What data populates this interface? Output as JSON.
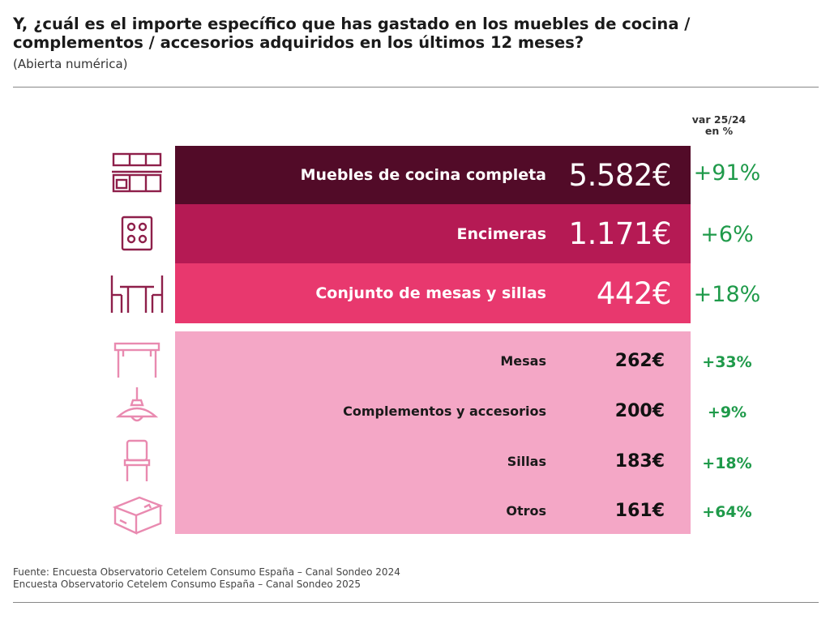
{
  "title": "Y, ¿cuál es el importe específico que has gastado en los muebles de cocina / complementos / accesorios adquiridos en los últimos 12 meses?",
  "subtitle": "(Abierta numérica)",
  "var_header": [
    "var 25/24",
    "en %"
  ],
  "colors": {
    "bar_dark": "#520b28",
    "bar_mid": "#b51a54",
    "bar_bright": "#e8386e",
    "bar_light": "#f4a7c6",
    "icon_main": "#8e1f4a",
    "icon_sub": "#e98ab0",
    "variation": "#1f9a4a"
  },
  "chart_data": {
    "type": "table",
    "title": "Y, ¿cuál es el importe específico que has gastado en los muebles de cocina / complementos / accesorios adquiridos en los últimos 12 meses?",
    "columns": [
      "",
      "",
      "var 25/24 en %"
    ],
    "main_rows": [
      {
        "label": "Muebles de cocina completa",
        "value": "5.582€",
        "var": "+91%",
        "icon": "kitchen-cabinets-icon"
      },
      {
        "label": "Encimeras",
        "value": "1.171€",
        "var": "+6%",
        "icon": "stove-top-icon"
      },
      {
        "label": "Conjunto de mesas y sillas",
        "value": "442€",
        "var": "+18%",
        "icon": "dining-set-icon"
      }
    ],
    "sub_rows": [
      {
        "label": "Mesas",
        "value": "262€",
        "var": "+33%",
        "icon": "table-icon"
      },
      {
        "label": "Complementos y accesorios",
        "value": "200€",
        "var": "+9%",
        "icon": "pendant-lamp-icon"
      },
      {
        "label": "Sillas",
        "value": "183€",
        "var": "+18%",
        "icon": "chair-icon"
      },
      {
        "label": "Otros",
        "value": "161€",
        "var": "+64%",
        "icon": "box-icon"
      }
    ]
  },
  "source": [
    "Fuente: Encuesta Observatorio Cetelem Consumo España – Canal Sondeo 2024",
    "Encuesta Observatorio Cetelem Consumo España – Canal Sondeo 2025"
  ]
}
